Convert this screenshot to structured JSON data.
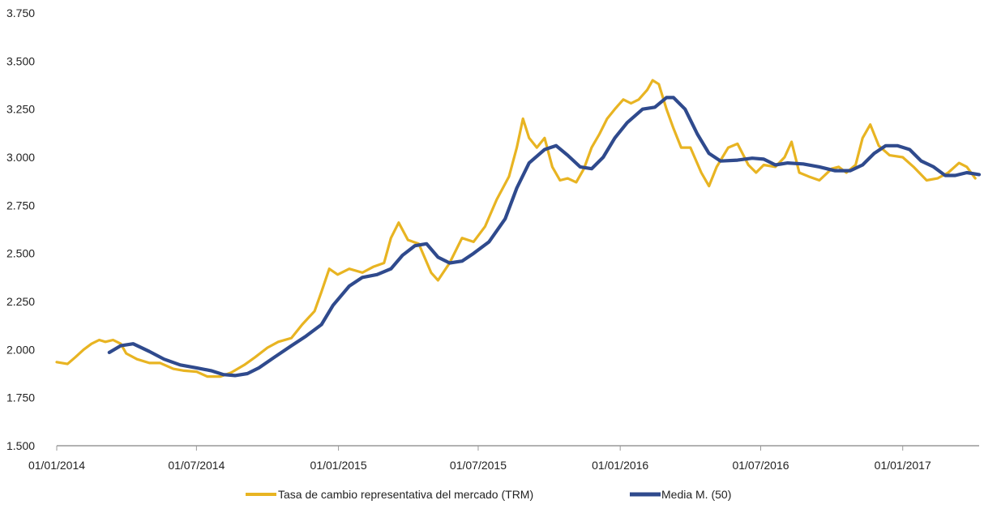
{
  "chart_data": {
    "type": "line",
    "title": "",
    "xlabel": "",
    "ylabel": "",
    "ylim": [
      1500,
      3750
    ],
    "xlim": [
      "2014-01-01",
      "2017-04-10"
    ],
    "yticks": [
      1500,
      1750,
      2000,
      2250,
      2500,
      2750,
      3000,
      3250,
      3500,
      3750
    ],
    "ytick_labels": [
      "1.500",
      "1.750",
      "2.000",
      "2.250",
      "2.500",
      "2.750",
      "3.000",
      "3.250",
      "3.500",
      "3.750"
    ],
    "xticks": [
      "2014-01-01",
      "2014-07-01",
      "2015-01-01",
      "2015-07-01",
      "2016-01-01",
      "2016-07-01",
      "2017-01-01"
    ],
    "xtick_labels": [
      "01/01/2014",
      "01/07/2014",
      "01/01/2015",
      "01/07/2015",
      "01/01/2016",
      "01/07/2016",
      "01/01/2017"
    ],
    "grid": false,
    "legend_position": "bottom",
    "series": [
      {
        "name": "Tasa de cambio representativa del mercado (TRM)",
        "color": "#E8B422",
        "points": [
          [
            "2014-01-01",
            1935
          ],
          [
            "2014-01-15",
            1925
          ],
          [
            "2014-01-25",
            1960
          ],
          [
            "2014-02-05",
            2000
          ],
          [
            "2014-02-15",
            2030
          ],
          [
            "2014-02-25",
            2050
          ],
          [
            "2014-03-05",
            2040
          ],
          [
            "2014-03-15",
            2050
          ],
          [
            "2014-03-25",
            2030
          ],
          [
            "2014-04-01",
            1980
          ],
          [
            "2014-04-15",
            1950
          ],
          [
            "2014-05-01",
            1930
          ],
          [
            "2014-05-15",
            1930
          ],
          [
            "2014-06-01",
            1900
          ],
          [
            "2014-06-15",
            1890
          ],
          [
            "2014-07-01",
            1885
          ],
          [
            "2014-07-15",
            1860
          ],
          [
            "2014-08-01",
            1860
          ],
          [
            "2014-08-15",
            1880
          ],
          [
            "2014-09-01",
            1920
          ],
          [
            "2014-09-15",
            1960
          ],
          [
            "2014-10-01",
            2010
          ],
          [
            "2014-10-15",
            2040
          ],
          [
            "2014-11-01",
            2060
          ],
          [
            "2014-11-15",
            2130
          ],
          [
            "2014-12-01",
            2200
          ],
          [
            "2014-12-10",
            2300
          ],
          [
            "2014-12-20",
            2420
          ],
          [
            "2014-12-31",
            2390
          ],
          [
            "2015-01-15",
            2420
          ],
          [
            "2015-02-01",
            2400
          ],
          [
            "2015-02-15",
            2430
          ],
          [
            "2015-03-01",
            2450
          ],
          [
            "2015-03-10",
            2580
          ],
          [
            "2015-03-20",
            2660
          ],
          [
            "2015-04-01",
            2570
          ],
          [
            "2015-04-15",
            2550
          ],
          [
            "2015-05-01",
            2400
          ],
          [
            "2015-05-10",
            2360
          ],
          [
            "2015-05-25",
            2450
          ],
          [
            "2015-06-10",
            2580
          ],
          [
            "2015-06-25",
            2560
          ],
          [
            "2015-07-10",
            2640
          ],
          [
            "2015-07-25",
            2780
          ],
          [
            "2015-08-10",
            2900
          ],
          [
            "2015-08-20",
            3050
          ],
          [
            "2015-08-28",
            3200
          ],
          [
            "2015-09-05",
            3100
          ],
          [
            "2015-09-15",
            3050
          ],
          [
            "2015-09-25",
            3100
          ],
          [
            "2015-10-05",
            2950
          ],
          [
            "2015-10-15",
            2880
          ],
          [
            "2015-10-25",
            2890
          ],
          [
            "2015-11-05",
            2870
          ],
          [
            "2015-11-15",
            2940
          ],
          [
            "2015-11-25",
            3050
          ],
          [
            "2015-12-05",
            3120
          ],
          [
            "2015-12-15",
            3200
          ],
          [
            "2015-12-25",
            3250
          ],
          [
            "2016-01-05",
            3300
          ],
          [
            "2016-01-15",
            3280
          ],
          [
            "2016-01-25",
            3300
          ],
          [
            "2016-02-05",
            3350
          ],
          [
            "2016-02-12",
            3400
          ],
          [
            "2016-02-20",
            3380
          ],
          [
            "2016-03-01",
            3250
          ],
          [
            "2016-03-10",
            3150
          ],
          [
            "2016-03-20",
            3050
          ],
          [
            "2016-04-01",
            3050
          ],
          [
            "2016-04-15",
            2920
          ],
          [
            "2016-04-25",
            2850
          ],
          [
            "2016-05-05",
            2950
          ],
          [
            "2016-05-20",
            3050
          ],
          [
            "2016-06-01",
            3070
          ],
          [
            "2016-06-15",
            2960
          ],
          [
            "2016-06-25",
            2920
          ],
          [
            "2016-07-05",
            2960
          ],
          [
            "2016-07-20",
            2950
          ],
          [
            "2016-08-01",
            3000
          ],
          [
            "2016-08-10",
            3080
          ],
          [
            "2016-08-20",
            2920
          ],
          [
            "2016-09-01",
            2900
          ],
          [
            "2016-09-15",
            2880
          ],
          [
            "2016-10-01",
            2940
          ],
          [
            "2016-10-10",
            2950
          ],
          [
            "2016-10-20",
            2920
          ],
          [
            "2016-11-01",
            2960
          ],
          [
            "2016-11-10",
            3100
          ],
          [
            "2016-11-20",
            3170
          ],
          [
            "2016-12-01",
            3060
          ],
          [
            "2016-12-15",
            3010
          ],
          [
            "2017-01-01",
            3000
          ],
          [
            "2017-01-15",
            2950
          ],
          [
            "2017-02-01",
            2880
          ],
          [
            "2017-02-15",
            2890
          ],
          [
            "2017-03-01",
            2920
          ],
          [
            "2017-03-15",
            2970
          ],
          [
            "2017-03-25",
            2950
          ],
          [
            "2017-04-05",
            2890
          ]
        ]
      },
      {
        "name": "Media M. (50)",
        "color": "#2F4A8D",
        "points": [
          [
            "2014-03-10",
            1985
          ],
          [
            "2014-03-25",
            2020
          ],
          [
            "2014-04-10",
            2030
          ],
          [
            "2014-05-01",
            1990
          ],
          [
            "2014-05-20",
            1950
          ],
          [
            "2014-06-10",
            1920
          ],
          [
            "2014-07-01",
            1905
          ],
          [
            "2014-07-20",
            1890
          ],
          [
            "2014-08-05",
            1870
          ],
          [
            "2014-08-20",
            1865
          ],
          [
            "2014-09-05",
            1875
          ],
          [
            "2014-09-20",
            1905
          ],
          [
            "2014-10-10",
            1960
          ],
          [
            "2014-11-01",
            2020
          ],
          [
            "2014-11-20",
            2070
          ],
          [
            "2014-12-10",
            2130
          ],
          [
            "2014-12-25",
            2230
          ],
          [
            "2015-01-15",
            2330
          ],
          [
            "2015-02-01",
            2375
          ],
          [
            "2015-02-20",
            2390
          ],
          [
            "2015-03-10",
            2420
          ],
          [
            "2015-03-25",
            2490
          ],
          [
            "2015-04-10",
            2540
          ],
          [
            "2015-04-25",
            2550
          ],
          [
            "2015-05-10",
            2480
          ],
          [
            "2015-05-25",
            2450
          ],
          [
            "2015-06-10",
            2460
          ],
          [
            "2015-06-25",
            2500
          ],
          [
            "2015-07-15",
            2560
          ],
          [
            "2015-08-05",
            2680
          ],
          [
            "2015-08-20",
            2840
          ],
          [
            "2015-09-05",
            2970
          ],
          [
            "2015-09-25",
            3040
          ],
          [
            "2015-10-10",
            3060
          ],
          [
            "2015-10-25",
            3010
          ],
          [
            "2015-11-10",
            2950
          ],
          [
            "2015-11-25",
            2940
          ],
          [
            "2015-12-10",
            3000
          ],
          [
            "2015-12-25",
            3100
          ],
          [
            "2016-01-10",
            3180
          ],
          [
            "2016-01-30",
            3250
          ],
          [
            "2016-02-15",
            3260
          ],
          [
            "2016-03-01",
            3310
          ],
          [
            "2016-03-10",
            3310
          ],
          [
            "2016-03-25",
            3250
          ],
          [
            "2016-04-10",
            3120
          ],
          [
            "2016-04-25",
            3020
          ],
          [
            "2016-05-10",
            2980
          ],
          [
            "2016-06-01",
            2985
          ],
          [
            "2016-06-20",
            2995
          ],
          [
            "2016-07-05",
            2990
          ],
          [
            "2016-07-20",
            2960
          ],
          [
            "2016-08-05",
            2970
          ],
          [
            "2016-08-25",
            2965
          ],
          [
            "2016-09-15",
            2950
          ],
          [
            "2016-10-05",
            2930
          ],
          [
            "2016-10-25",
            2930
          ],
          [
            "2016-11-10",
            2960
          ],
          [
            "2016-11-25",
            3020
          ],
          [
            "2016-12-10",
            3060
          ],
          [
            "2016-12-25",
            3060
          ],
          [
            "2017-01-10",
            3040
          ],
          [
            "2017-01-25",
            2980
          ],
          [
            "2017-02-10",
            2950
          ],
          [
            "2017-02-25",
            2905
          ],
          [
            "2017-03-10",
            2905
          ],
          [
            "2017-03-25",
            2920
          ],
          [
            "2017-04-10",
            2910
          ]
        ]
      }
    ]
  }
}
